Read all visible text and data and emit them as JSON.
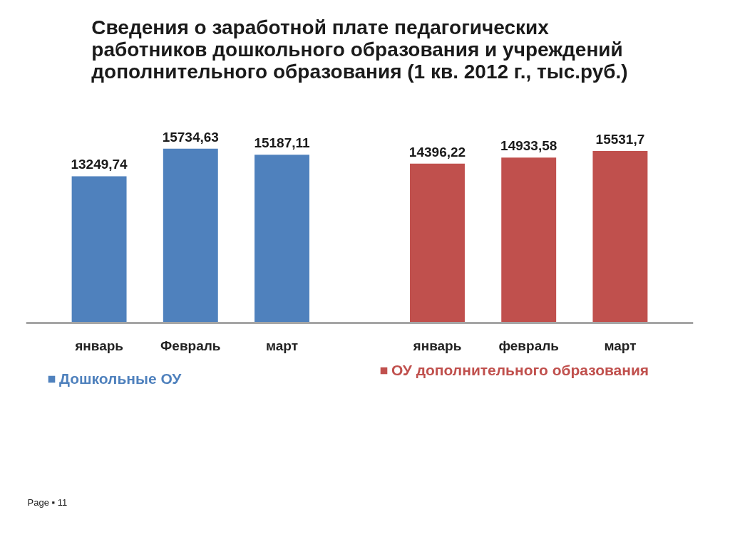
{
  "chart_data": {
    "type": "bar",
    "title": "Сведения о заработной плате педагогических\nработников дошкольного образования и учреждений\nдополнительного образования (1 кв. 2012 г., тыс.руб.)",
    "categories": [
      "январь",
      "Февраль",
      "март",
      "январь",
      "февраль",
      "март"
    ],
    "series": [
      {
        "name": "Дошкольные ОУ",
        "color": "#4f81bd",
        "values": [
          13249.74,
          15734.63,
          15187.11,
          null,
          null,
          null
        ],
        "value_labels": [
          "13249,74",
          "15734,63",
          "15187,11",
          null,
          null,
          null
        ]
      },
      {
        "name": "ОУ дополнительного образования",
        "color": "#c0504d",
        "values": [
          null,
          null,
          null,
          14396.22,
          14933.58,
          15531.7
        ],
        "value_labels": [
          null,
          null,
          null,
          "14396,22",
          "14933,58",
          "15531,7"
        ]
      }
    ],
    "tick_labels": "x",
    "legend": "bottom",
    "annotations": [
      "Page ▪ 11"
    ]
  }
}
